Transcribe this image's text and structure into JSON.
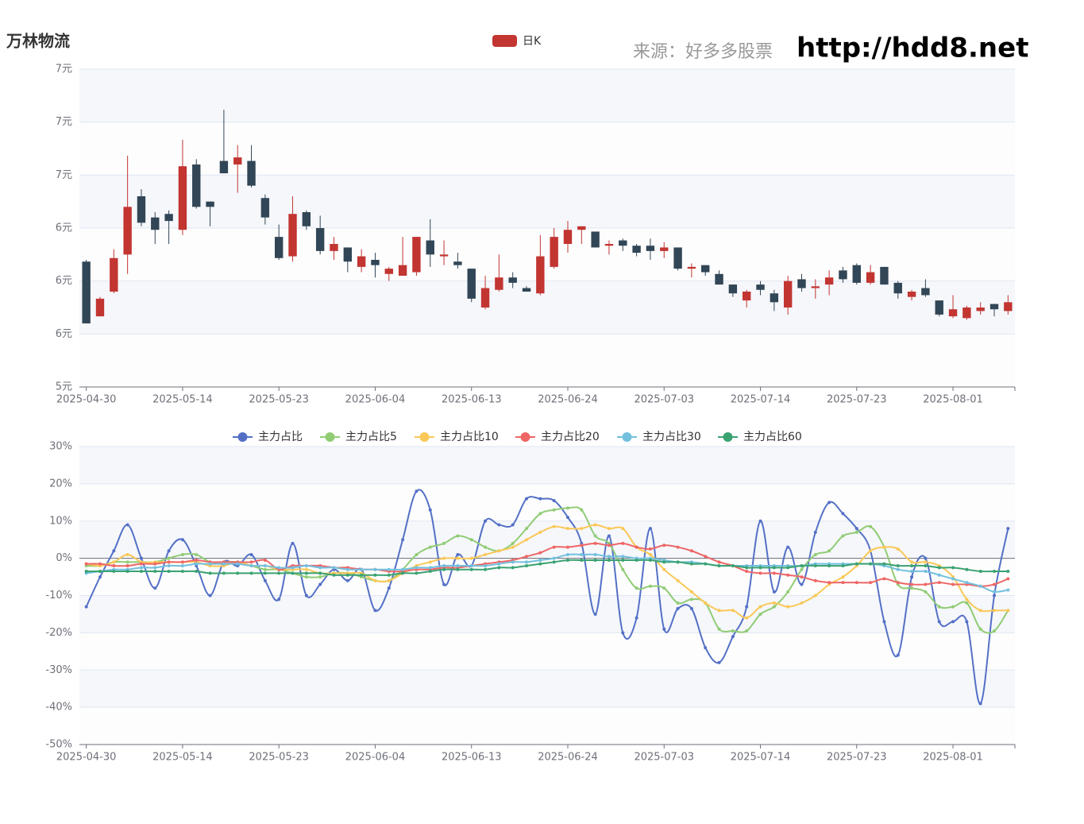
{
  "chart_data": [
    {
      "type": "candlestick",
      "title": "万林物流",
      "annotations": [
        "来源：好多多股票",
        "http://hdd8.net"
      ],
      "series_name": "日K",
      "up_color": "#c23531",
      "down_color": "#314656",
      "categories": [
        "2025-04-30",
        null,
        null,
        null,
        null,
        null,
        null,
        "2025-05-14",
        null,
        null,
        null,
        null,
        null,
        null,
        "2025-05-23",
        null,
        null,
        null,
        null,
        null,
        null,
        "2025-06-04",
        null,
        null,
        null,
        null,
        null,
        null,
        "2025-06-13",
        null,
        null,
        null,
        null,
        null,
        null,
        "2025-06-24",
        null,
        null,
        null,
        null,
        null,
        null,
        "2025-07-03",
        null,
        null,
        null,
        null,
        null,
        null,
        "2025-07-14",
        null,
        null,
        null,
        null,
        null,
        null,
        "2025-07-23",
        null,
        null,
        null,
        null,
        null,
        null,
        "2025-08-01",
        null,
        null,
        null,
        null
      ],
      "open": [
        6.01,
        5.7,
        5.84,
        6.05,
        6.38,
        6.26,
        6.28,
        6.19,
        6.56,
        6.35,
        6.58,
        6.56,
        6.58,
        6.37,
        6.15,
        6.04,
        6.29,
        6.2,
        6.07,
        6.09,
        5.98,
        6.02,
        5.94,
        5.93,
        5.95,
        6.13,
        6.04,
        6.01,
        5.97,
        5.75,
        5.85,
        5.92,
        5.86,
        5.83,
        5.98,
        6.11,
        6.19,
        6.18,
        6.1,
        6.13,
        6.1,
        6.1,
        6.07,
        6.09,
        5.97,
        5.99,
        5.94,
        5.88,
        5.79,
        5.88,
        5.83,
        5.75,
        5.91,
        5.86,
        5.88,
        5.96,
        5.99,
        5.89,
        5.98,
        5.89,
        5.81,
        5.86,
        5.79,
        5.7,
        5.69,
        5.73,
        5.77,
        5.73
      ],
      "close": [
        5.66,
        5.8,
        6.03,
        6.32,
        6.23,
        6.19,
        6.24,
        6.55,
        6.32,
        6.32,
        6.51,
        6.6,
        6.44,
        6.26,
        6.03,
        6.28,
        6.21,
        6.07,
        6.11,
        6.01,
        6.04,
        5.99,
        5.97,
        5.99,
        6.15,
        6.05,
        6.05,
        5.99,
        5.8,
        5.86,
        5.92,
        5.89,
        5.84,
        6.04,
        6.15,
        6.19,
        6.21,
        6.09,
        6.11,
        6.1,
        6.06,
        6.07,
        6.09,
        5.97,
        5.98,
        5.95,
        5.88,
        5.83,
        5.84,
        5.85,
        5.78,
        5.9,
        5.86,
        5.87,
        5.92,
        5.91,
        5.89,
        5.95,
        5.88,
        5.83,
        5.84,
        5.82,
        5.71,
        5.74,
        5.75,
        5.75,
        5.74,
        5.78
      ],
      "high": [
        6.02,
        5.81,
        6.08,
        6.61,
        6.42,
        6.29,
        6.3,
        6.7,
        6.59,
        6.35,
        6.87,
        6.67,
        6.67,
        6.39,
        6.22,
        6.38,
        6.3,
        6.27,
        6.15,
        6.09,
        6.08,
        6.06,
        5.98,
        6.15,
        6.15,
        6.25,
        6.13,
        6.06,
        5.97,
        5.93,
        6.05,
        5.95,
        5.87,
        6.16,
        6.2,
        6.24,
        6.21,
        6.18,
        6.13,
        6.14,
        6.11,
        6.14,
        6.12,
        6.09,
        6.0,
        5.99,
        5.96,
        5.88,
        5.85,
        5.9,
        5.85,
        5.93,
        5.94,
        5.91,
        5.96,
        5.98,
        6.0,
        5.99,
        5.98,
        5.9,
        5.85,
        5.91,
        5.79,
        5.82,
        5.76,
        5.78,
        5.77,
        5.82
      ],
      "low": [
        5.66,
        5.7,
        5.83,
        5.94,
        6.21,
        6.11,
        6.11,
        6.16,
        6.31,
        6.21,
        6.51,
        6.4,
        6.43,
        6.22,
        6.02,
        6.01,
        6.19,
        6.05,
        6.02,
        5.95,
        5.95,
        5.92,
        5.9,
        5.93,
        5.93,
        5.98,
        5.99,
        5.97,
        5.78,
        5.74,
        5.84,
        5.86,
        5.84,
        5.82,
        5.97,
        6.06,
        6.11,
        6.09,
        6.05,
        6.07,
        6.04,
        6.02,
        6.03,
        5.96,
        5.92,
        5.93,
        5.88,
        5.81,
        5.75,
        5.82,
        5.73,
        5.71,
        5.84,
        5.8,
        5.82,
        5.89,
        5.88,
        5.88,
        5.88,
        5.8,
        5.79,
        5.81,
        5.7,
        5.69,
        5.68,
        5.71,
        5.7,
        5.71
      ],
      "ylim": [
        5.3,
        7.1
      ],
      "yticks": [
        {
          "value": 5.3,
          "label": "5元"
        },
        {
          "value": 5.6,
          "label": "6元"
        },
        {
          "value": 5.9,
          "label": "6元"
        },
        {
          "value": 6.2,
          "label": "6元"
        },
        {
          "value": 6.5,
          "label": "7元"
        },
        {
          "value": 6.8,
          "label": "7元"
        },
        {
          "value": 7.1,
          "label": "7元"
        }
      ],
      "grid": true
    },
    {
      "type": "line",
      "smooth": true,
      "categories": [
        "2025-04-30",
        null,
        null,
        null,
        null,
        null,
        null,
        "2025-05-14",
        null,
        null,
        null,
        null,
        null,
        null,
        "2025-05-23",
        null,
        null,
        null,
        null,
        null,
        null,
        "2025-06-04",
        null,
        null,
        null,
        null,
        null,
        null,
        "2025-06-13",
        null,
        null,
        null,
        null,
        null,
        null,
        "2025-06-24",
        null,
        null,
        null,
        null,
        null,
        null,
        "2025-07-03",
        null,
        null,
        null,
        null,
        null,
        null,
        "2025-07-14",
        null,
        null,
        null,
        null,
        null,
        null,
        "2025-07-23",
        null,
        null,
        null,
        null,
        null,
        null,
        "2025-08-01",
        null,
        null,
        null,
        null
      ],
      "series": [
        {
          "name": "主力占比",
          "color": "#5470c6",
          "values": [
            -13,
            -5,
            2,
            9,
            0,
            -8,
            2,
            5,
            -2,
            -10,
            -1,
            -2,
            1,
            -6,
            -11,
            4,
            -10,
            -7,
            -3,
            -6,
            -3,
            -14,
            -8,
            5,
            18,
            13,
            -7,
            1,
            -2,
            10,
            9,
            9,
            16,
            16,
            15.5,
            11,
            4,
            -15,
            6,
            -20,
            -16,
            8,
            -19,
            -13.5,
            -13.5,
            -24,
            -28,
            -21,
            -13,
            10,
            -9,
            3,
            -7,
            7,
            15,
            12,
            8,
            2,
            -17,
            -26,
            -5,
            0,
            -17,
            -17,
            -17,
            -39,
            -10,
            8
          ]
        },
        {
          "name": "主力占比5",
          "color": "#91cc75",
          "values": [
            -2,
            -2,
            -1,
            -1,
            -1,
            -1,
            0,
            1,
            1,
            -1,
            -1,
            -1,
            -2,
            -3,
            -3,
            -4,
            -5,
            -5,
            -4,
            -4,
            -5,
            -6,
            -6,
            -3,
            1,
            3,
            4,
            6,
            5,
            3,
            2,
            4,
            8,
            12,
            13,
            13.5,
            13,
            6,
            4,
            -3,
            -8,
            -7.5,
            -8,
            -12,
            -11,
            -12,
            -19,
            -19.5,
            -19.5,
            -15,
            -13,
            -9,
            -3,
            1,
            2,
            6,
            7,
            8.5,
            3,
            -7,
            -8,
            -9,
            -13,
            -13,
            -12,
            -19,
            -19.5,
            -14
          ]
        },
        {
          "name": "主力占比10",
          "color": "#fac858",
          "values": [
            -1.5,
            -2,
            -1,
            1,
            -1,
            -1,
            -1,
            -1,
            -1,
            -2,
            -2,
            -1,
            -2,
            -2,
            -3,
            -3,
            -3,
            -4,
            -4,
            -4,
            -4,
            -6,
            -6,
            -4,
            -2,
            -1,
            0,
            0,
            0,
            1,
            2,
            3,
            5,
            7,
            8.5,
            8,
            8,
            9,
            8,
            8,
            3,
            1,
            -3,
            -6,
            -9,
            -12,
            -14,
            -14,
            -16,
            -13,
            -12,
            -13,
            -12,
            -10,
            -7,
            -5,
            -2,
            2,
            3,
            2.5,
            -1,
            -1,
            -2,
            -5,
            -11,
            -14,
            -14,
            -14
          ]
        },
        {
          "name": "主力占比20",
          "color": "#ee6666",
          "values": [
            -1.5,
            -1.5,
            -2,
            -2,
            -1.5,
            -1.5,
            -1,
            -1,
            -0.5,
            -1,
            -1,
            -1,
            -1,
            -0.5,
            -3,
            -2,
            -2,
            -2,
            -2.5,
            -2.5,
            -3,
            -3,
            -3.5,
            -3.5,
            -3,
            -3,
            -2.5,
            -2.5,
            -2,
            -1.5,
            -1,
            -0.5,
            0.5,
            1.5,
            3,
            3,
            3.5,
            4,
            3.5,
            4,
            3,
            2.5,
            3.5,
            3,
            2,
            0.5,
            -1,
            -2,
            -3.5,
            -4,
            -4,
            -4.5,
            -5,
            -6,
            -6.5,
            -6.5,
            -6.5,
            -6.5,
            -5.5,
            -6.5,
            -7,
            -7,
            -6.5,
            -7,
            -7,
            -7.5,
            -7,
            -5.5
          ]
        },
        {
          "name": "主力占比30",
          "color": "#73c0de",
          "values": [
            -4,
            -3.5,
            -3,
            -3,
            -2.5,
            -2.5,
            -2,
            -2,
            -1.5,
            -1.5,
            -1.5,
            -1.5,
            -2,
            -2,
            -2.5,
            -2.5,
            -2,
            -2.5,
            -2.5,
            -3,
            -3,
            -3,
            -3,
            -3,
            -2.5,
            -2.5,
            -2,
            -2,
            -2,
            -2,
            -1.5,
            -1,
            -1,
            -0.5,
            0,
            1,
            1,
            1,
            0.5,
            0.5,
            0,
            0,
            -0.5,
            -1,
            -1,
            -1.5,
            -2,
            -2,
            -2,
            -2,
            -2,
            -2,
            -2,
            -1.5,
            -1.5,
            -1.5,
            -1.5,
            -1.5,
            -2,
            -3,
            -3.5,
            -3.5,
            -4.5,
            -5.5,
            -6.5,
            -7.5,
            -9,
            -8.5
          ]
        },
        {
          "name": "主力占比60",
          "color": "#3ba272",
          "values": [
            -3.5,
            -3.5,
            -3.5,
            -3.5,
            -3.5,
            -3.5,
            -3.5,
            -3.5,
            -3.5,
            -4,
            -4,
            -4,
            -4,
            -4,
            -4,
            -4,
            -4,
            -4,
            -4.5,
            -4.5,
            -4.5,
            -4.5,
            -4.5,
            -4,
            -4,
            -3.5,
            -3,
            -3,
            -3,
            -3,
            -2.5,
            -2.5,
            -2,
            -1.5,
            -1,
            -0.5,
            -0.5,
            -0.5,
            -0.5,
            -0.5,
            -0.5,
            -0.5,
            -1,
            -1,
            -1.5,
            -1.5,
            -2,
            -2,
            -2.5,
            -2.5,
            -2.5,
            -2.5,
            -2,
            -2,
            -2,
            -2,
            -1.5,
            -1.5,
            -1.5,
            -2,
            -2,
            -2,
            -2.5,
            -2.5,
            -3,
            -3.5,
            -3.5,
            -3.5
          ]
        }
      ],
      "ylim": [
        -50,
        30
      ],
      "yticks": [
        {
          "value": -50,
          "label": "-50%"
        },
        {
          "value": -40,
          "label": "-40%"
        },
        {
          "value": -30,
          "label": "-30%"
        },
        {
          "value": -20,
          "label": "-20%"
        },
        {
          "value": -10,
          "label": "-10%"
        },
        {
          "value": 0,
          "label": "0%"
        },
        {
          "value": 10,
          "label": "10%"
        },
        {
          "value": 20,
          "label": "20%"
        },
        {
          "value": 30,
          "label": "30%"
        }
      ],
      "grid": true
    }
  ]
}
